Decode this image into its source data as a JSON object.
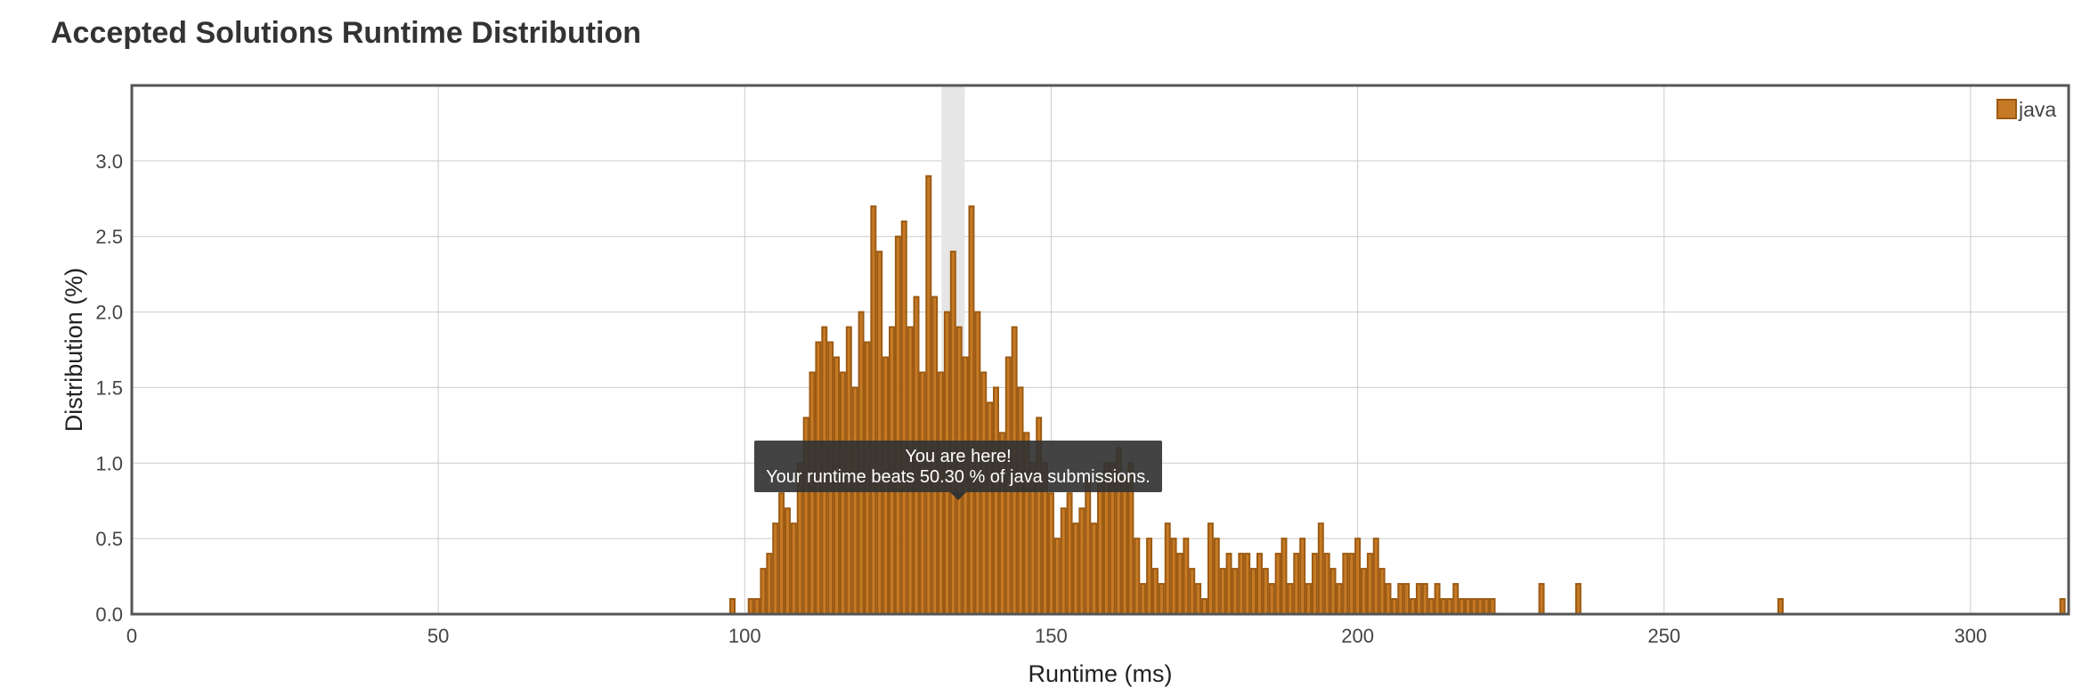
{
  "title": "Accepted Solutions Runtime Distribution",
  "colors": {
    "bar_fill": "#c67a26",
    "bar_stroke": "#9c5a12",
    "frame": "#555555",
    "grid": "#cccccc",
    "highlight": "#e6e6e6",
    "tooltip_bg": "#333333"
  },
  "tooltip": {
    "line1": "You are here!",
    "line2": "Your runtime beats 50.30 % of java submissions."
  },
  "chart_data": {
    "type": "bar",
    "xlabel": "Runtime (ms)",
    "ylabel": "Distribution (%)",
    "xlim": [
      0,
      316
    ],
    "ylim": [
      0,
      3.5
    ],
    "x_ticks": [
      "0",
      "50",
      "100",
      "150",
      "200",
      "250",
      "300"
    ],
    "y_ticks": [
      "0.0",
      "0.5",
      "1.0",
      "1.5",
      "2.0",
      "2.5",
      "3.0"
    ],
    "grid": true,
    "legend": {
      "position": "top-right",
      "entries": [
        "java"
      ]
    },
    "series": [
      {
        "name": "java",
        "x": [
          98,
          101,
          102,
          103,
          104,
          105,
          106,
          107,
          108,
          109,
          110,
          111,
          112,
          113,
          114,
          115,
          116,
          117,
          118,
          119,
          120,
          121,
          122,
          123,
          124,
          125,
          126,
          127,
          128,
          129,
          130,
          131,
          132,
          133,
          134,
          135,
          136,
          137,
          138,
          139,
          140,
          141,
          142,
          143,
          144,
          145,
          146,
          147,
          148,
          149,
          150,
          151,
          152,
          153,
          154,
          155,
          156,
          157,
          158,
          159,
          160,
          161,
          162,
          163,
          164,
          165,
          166,
          167,
          168,
          169,
          170,
          171,
          172,
          173,
          174,
          175,
          176,
          177,
          178,
          179,
          180,
          181,
          182,
          183,
          184,
          185,
          186,
          187,
          188,
          189,
          190,
          191,
          192,
          193,
          194,
          195,
          196,
          197,
          198,
          199,
          200,
          201,
          202,
          203,
          204,
          205,
          206,
          207,
          208,
          209,
          210,
          211,
          212,
          213,
          214,
          215,
          216,
          217,
          218,
          219,
          220,
          221,
          222,
          230,
          236,
          269,
          315
        ],
        "values": [
          0.1,
          0.1,
          0.1,
          0.3,
          0.4,
          0.6,
          0.8,
          0.7,
          0.6,
          1.0,
          1.3,
          1.6,
          1.8,
          1.9,
          1.8,
          1.7,
          1.6,
          1.9,
          1.5,
          2.0,
          1.8,
          2.7,
          2.4,
          1.7,
          1.9,
          2.5,
          2.6,
          1.9,
          2.1,
          1.6,
          2.9,
          2.1,
          1.6,
          2.0,
          2.4,
          1.9,
          1.7,
          2.7,
          2.0,
          1.6,
          1.4,
          1.5,
          1.2,
          1.7,
          1.9,
          1.5,
          1.2,
          1.0,
          1.3,
          1.0,
          0.8,
          0.5,
          0.7,
          0.8,
          0.6,
          0.7,
          0.9,
          0.6,
          0.9,
          1.0,
          1.0,
          1.1,
          0.9,
          1.0,
          0.5,
          0.2,
          0.5,
          0.3,
          0.2,
          0.6,
          0.5,
          0.4,
          0.5,
          0.3,
          0.2,
          0.1,
          0.6,
          0.5,
          0.3,
          0.4,
          0.3,
          0.4,
          0.4,
          0.3,
          0.4,
          0.3,
          0.2,
          0.4,
          0.5,
          0.2,
          0.4,
          0.5,
          0.2,
          0.4,
          0.6,
          0.4,
          0.3,
          0.2,
          0.4,
          0.4,
          0.5,
          0.3,
          0.4,
          0.5,
          0.3,
          0.2,
          0.1,
          0.2,
          0.2,
          0.1,
          0.2,
          0.2,
          0.1,
          0.2,
          0.1,
          0.1,
          0.2,
          0.1,
          0.1,
          0.1,
          0.1,
          0.1,
          0.1,
          0.2,
          0.2,
          0.1,
          0.1
        ]
      }
    ],
    "highlight_x": 134
  }
}
